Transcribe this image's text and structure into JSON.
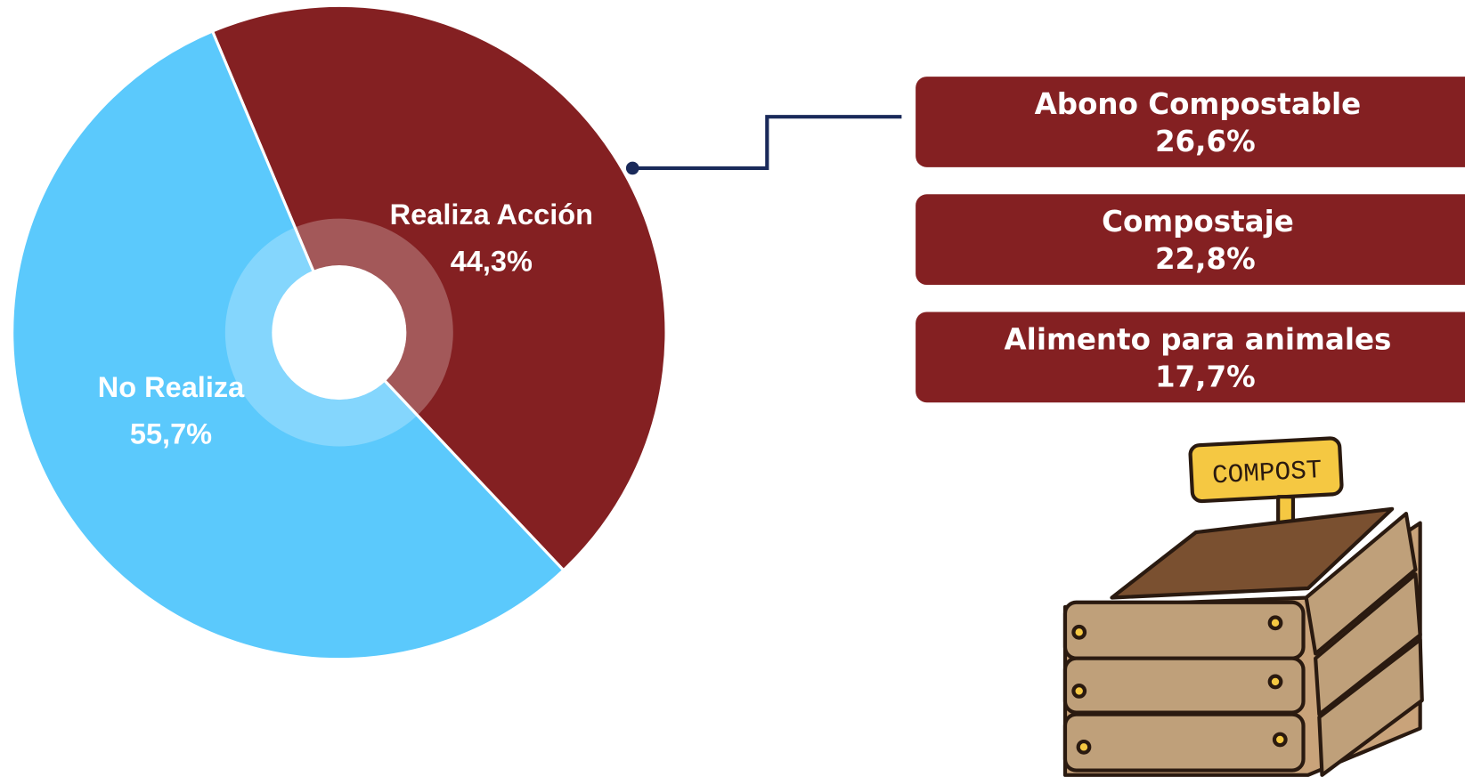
{
  "chart_data": {
    "type": "pie",
    "categories": [
      "Realiza Acción",
      "No Realiza"
    ],
    "values": [
      44.3,
      55.7
    ],
    "value_labels": [
      "44,3%",
      "55,7%"
    ],
    "colors": [
      "#842022",
      "#5bc9fc"
    ]
  },
  "breakdown": [
    {
      "label": "Abono Compostable",
      "value_label": "26,6%"
    },
    {
      "label": "Compostaje",
      "value_label": "22,8%"
    },
    {
      "label": "Alimento para animales",
      "value_label": "17,7%"
    }
  ],
  "illustration": {
    "sign": "COMPOST"
  }
}
